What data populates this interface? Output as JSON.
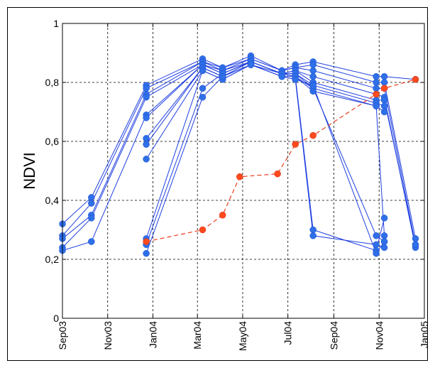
{
  "chart_data": {
    "type": "line",
    "title": "",
    "xlabel": "",
    "ylabel": "NDVI",
    "ylim": [
      0,
      1
    ],
    "xlim": [
      "2003-09-01",
      "2005-01-01"
    ],
    "grid": true,
    "y_tick_labels": [
      "0",
      "0,2",
      "0,4",
      "0,6",
      "0,8",
      "1"
    ],
    "y_tick_values": [
      0,
      0.2,
      0.4,
      0.6,
      0.8,
      1.0
    ],
    "x_tick_labels": [
      "Sep03",
      "Nov03",
      "Jan04",
      "Mar04",
      "May04",
      "Jul04",
      "Sep04",
      "Nov04",
      "Jan05"
    ],
    "x_tick_dates": [
      "2003-09-01",
      "2003-11-01",
      "2004-01-01",
      "2004-03-01",
      "2004-05-01",
      "2004-07-01",
      "2004-09-01",
      "2004-11-01",
      "2005-01-01"
    ],
    "colors": {
      "blue_series": "#1f3fe0",
      "blue_marker": "#2f6fe8",
      "red_series": "#ee3b1e",
      "red_marker": "#ff4a1e",
      "grid": "#000000"
    },
    "series": [
      {
        "color": "blue",
        "x": [
          "2003-09-01",
          "2003-10-10",
          "2003-12-23",
          "2004-03-08",
          "2004-04-04",
          "2004-05-12",
          "2004-06-23",
          "2004-07-11",
          "2004-08-04",
          "2004-10-28",
          "2004-11-08",
          "2004-12-20"
        ],
        "y": [
          0.32,
          0.41,
          0.79,
          0.88,
          0.85,
          0.89,
          0.84,
          0.86,
          0.87,
          0.82,
          0.82,
          0.81
        ]
      },
      {
        "color": "blue",
        "x": [
          "2003-09-01",
          "2003-10-10",
          "2003-12-23",
          "2004-03-08",
          "2004-04-04",
          "2004-05-12",
          "2004-06-23",
          "2004-07-11",
          "2004-08-04",
          "2004-10-28",
          "2004-11-08",
          "2004-12-20"
        ],
        "y": [
          0.28,
          0.39,
          0.78,
          0.87,
          0.85,
          0.88,
          0.84,
          0.85,
          0.86,
          0.8,
          0.8,
          0.27
        ]
      },
      {
        "color": "blue",
        "x": [
          "2003-09-01",
          "2003-10-10",
          "2003-12-23",
          "2004-03-08",
          "2004-04-04",
          "2004-05-12",
          "2004-06-23",
          "2004-07-11",
          "2004-08-04",
          "2004-10-28",
          "2004-11-08",
          "2004-12-20"
        ],
        "y": [
          0.27,
          0.35,
          0.76,
          0.87,
          0.84,
          0.88,
          0.84,
          0.85,
          0.84,
          0.78,
          0.78,
          0.25
        ]
      },
      {
        "color": "blue",
        "x": [
          "2003-09-01",
          "2003-10-10",
          "2003-12-23",
          "2004-03-08",
          "2004-04-04",
          "2004-05-12",
          "2004-06-23",
          "2004-07-11",
          "2004-08-04",
          "2004-10-28",
          "2004-11-08",
          "2004-12-20"
        ],
        "y": [
          0.24,
          0.34,
          0.75,
          0.86,
          0.84,
          0.87,
          0.83,
          0.84,
          0.82,
          0.76,
          0.75,
          0.24
        ]
      },
      {
        "color": "blue",
        "x": [
          "2003-09-01",
          "2003-10-10",
          "2003-12-23",
          "2004-03-08",
          "2004-04-04",
          "2004-05-12",
          "2004-06-23",
          "2004-07-11",
          "2004-08-04",
          "2004-10-28",
          "2004-11-08",
          "2004-12-20"
        ],
        "y": [
          0.23,
          0.26,
          0.69,
          0.86,
          0.83,
          0.87,
          0.83,
          0.84,
          0.8,
          0.74,
          0.74,
          0.25
        ]
      },
      {
        "color": "blue",
        "x": [
          "2003-12-23",
          "2004-03-08",
          "2004-04-04",
          "2004-05-12",
          "2004-06-23",
          "2004-07-11",
          "2004-08-04",
          "2004-10-28",
          "2004-11-08"
        ],
        "y": [
          0.68,
          0.86,
          0.83,
          0.87,
          0.83,
          0.83,
          0.79,
          0.73,
          0.72
        ]
      },
      {
        "color": "blue",
        "x": [
          "2003-12-23",
          "2004-03-08",
          "2004-04-04",
          "2004-05-12",
          "2004-06-23",
          "2004-07-11",
          "2004-08-04",
          "2004-10-28",
          "2004-11-08"
        ],
        "y": [
          0.61,
          0.85,
          0.82,
          0.87,
          0.83,
          0.83,
          0.78,
          0.72,
          0.7
        ]
      },
      {
        "color": "blue",
        "x": [
          "2003-12-23",
          "2004-03-08",
          "2004-04-04",
          "2004-05-12",
          "2004-06-23",
          "2004-07-11",
          "2004-08-04",
          "2004-10-28",
          "2004-11-08"
        ],
        "y": [
          0.59,
          0.85,
          0.82,
          0.86,
          0.83,
          0.82,
          0.77,
          0.72,
          0.28
        ]
      },
      {
        "color": "blue",
        "x": [
          "2003-12-23",
          "2004-03-08",
          "2004-04-04",
          "2004-05-12",
          "2004-06-23",
          "2004-07-11",
          "2004-08-04",
          "2004-10-28",
          "2004-11-08"
        ],
        "y": [
          0.54,
          0.84,
          0.81,
          0.86,
          0.82,
          0.82,
          0.78,
          0.28,
          0.26
        ]
      },
      {
        "color": "blue",
        "x": [
          "2003-12-23",
          "2004-03-08",
          "2004-04-04",
          "2004-05-12",
          "2004-06-23",
          "2004-07-11",
          "2004-08-04",
          "2004-10-28",
          "2004-11-08"
        ],
        "y": [
          0.27,
          0.84,
          0.81,
          0.86,
          0.82,
          0.81,
          0.28,
          0.25,
          0.24
        ]
      },
      {
        "color": "blue",
        "x": [
          "2003-12-23",
          "2004-03-08",
          "2004-04-04",
          "2004-05-12",
          "2004-06-23",
          "2004-07-11",
          "2004-08-04",
          "2004-10-28",
          "2004-11-08"
        ],
        "y": [
          0.25,
          0.78,
          0.83,
          0.87,
          0.83,
          0.82,
          0.3,
          0.23,
          0.34
        ]
      },
      {
        "color": "blue",
        "x": [
          "2003-12-23",
          "2004-03-08",
          "2004-04-04",
          "2004-05-12",
          "2004-06-23",
          "2004-07-11",
          "2004-08-04",
          "2004-10-28",
          "2004-11-08"
        ],
        "y": [
          0.22,
          0.75,
          0.82,
          0.86,
          0.82,
          0.81,
          0.79,
          0.22,
          0.26
        ]
      },
      {
        "color": "red",
        "dashed": true,
        "x": [
          "2003-12-23",
          "2004-03-08",
          "2004-04-04",
          "2004-04-27",
          "2004-06-17",
          "2004-07-11",
          "2004-08-04",
          "2004-10-28",
          "2004-11-08",
          "2004-12-20"
        ],
        "y": [
          0.26,
          0.3,
          0.35,
          0.48,
          0.49,
          0.59,
          0.62,
          0.76,
          0.78,
          0.81
        ]
      }
    ]
  }
}
